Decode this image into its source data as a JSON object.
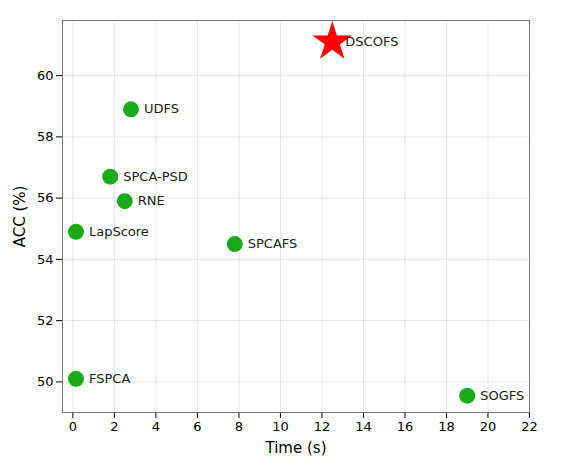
{
  "chart_data": {
    "type": "scatter",
    "xlabel": "Time (s)",
    "ylabel": "ACC (%)",
    "series": [
      {
        "name": "DSCOFS",
        "color": "#ff0000",
        "marker": "star",
        "x": [
          12.5
        ],
        "values": [
          61.1
        ]
      },
      {
        "name": "UDFS",
        "color": "#1aaa1a",
        "marker": "circle",
        "x": [
          2.8
        ],
        "values": [
          58.9
        ]
      },
      {
        "name": "SPCA-PSD",
        "color": "#1aaa1a",
        "marker": "circle",
        "x": [
          1.8
        ],
        "values": [
          56.7
        ]
      },
      {
        "name": "RNE",
        "color": "#1aaa1a",
        "marker": "circle",
        "x": [
          2.5
        ],
        "values": [
          55.9
        ]
      },
      {
        "name": "LapScore",
        "color": "#1aaa1a",
        "marker": "circle",
        "x": [
          0.15
        ],
        "values": [
          54.9
        ]
      },
      {
        "name": "SPCAFS",
        "color": "#1aaa1a",
        "marker": "circle",
        "x": [
          7.8
        ],
        "values": [
          54.5
        ]
      },
      {
        "name": "FSPCA",
        "color": "#1aaa1a",
        "marker": "circle",
        "x": [
          0.15
        ],
        "values": [
          50.1
        ]
      },
      {
        "name": "SOGFS",
        "color": "#1aaa1a",
        "marker": "circle",
        "x": [
          19.0
        ],
        "values": [
          49.55
        ]
      }
    ],
    "xlim": [
      -0.5,
      22
    ],
    "ylim": [
      49.0,
      61.8
    ],
    "xticks": [
      0,
      2,
      4,
      6,
      8,
      10,
      12,
      14,
      16,
      18,
      20,
      22
    ],
    "yticks": [
      50,
      52,
      54,
      56,
      58,
      60
    ],
    "grid": true
  }
}
